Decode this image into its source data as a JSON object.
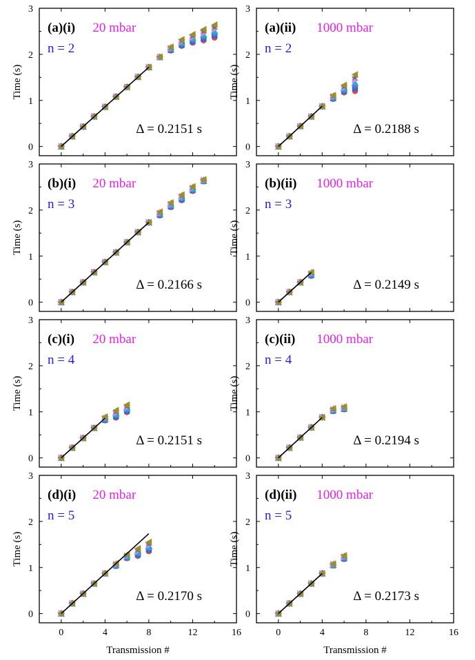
{
  "axes": {
    "xlabel": "Transmission #",
    "ylabel": "Time (s)",
    "xticks": [
      0,
      4,
      8,
      12,
      16
    ],
    "yticks": [
      0,
      1,
      2,
      3
    ],
    "xlim": [
      -2,
      16
    ],
    "ylim": [
      -0.2,
      3
    ]
  },
  "chart_data": [
    {
      "type": "scatter",
      "panel": "(a)(i)",
      "pressure": "20 mbar",
      "n": "n = 2",
      "delta": "Δ = 0.2151 s",
      "slope": 0.2151,
      "points": [
        [
          0,
          0
        ],
        [
          1,
          0.22
        ],
        [
          2,
          0.43
        ],
        [
          3,
          0.65
        ],
        [
          4,
          0.86
        ],
        [
          5,
          1.08
        ],
        [
          6,
          1.29
        ],
        [
          7,
          1.51
        ],
        [
          8,
          1.72
        ],
        [
          9,
          1.94
        ],
        [
          10,
          2.12
        ],
        [
          11,
          2.25
        ],
        [
          12,
          2.34
        ],
        [
          13,
          2.42
        ],
        [
          14,
          2.5
        ]
      ],
      "spread": [
        0,
        0,
        0,
        0,
        0,
        0,
        0,
        0,
        0,
        0,
        0.04,
        0.07,
        0.09,
        0.12,
        0.14
      ]
    },
    {
      "type": "scatter",
      "panel": "(a)(ii)",
      "pressure": "1000 mbar",
      "n": "n = 2",
      "delta": "Δ = 0.2188 s",
      "slope": 0.2188,
      "points": [
        [
          0,
          0
        ],
        [
          1,
          0.22
        ],
        [
          2,
          0.44
        ],
        [
          3,
          0.65
        ],
        [
          4,
          0.87
        ],
        [
          5,
          1.07
        ],
        [
          6,
          1.25
        ],
        [
          7,
          1.38
        ]
      ],
      "spread": [
        0,
        0,
        0,
        0,
        0,
        0.04,
        0.08,
        0.18
      ]
    },
    {
      "type": "scatter",
      "panel": "(b)(i)",
      "pressure": "20 mbar",
      "n": "n = 3",
      "delta": "Δ = 0.2166 s",
      "slope": 0.2166,
      "points": [
        [
          0,
          0
        ],
        [
          1,
          0.22
        ],
        [
          2,
          0.43
        ],
        [
          3,
          0.65
        ],
        [
          4,
          0.87
        ],
        [
          5,
          1.08
        ],
        [
          6,
          1.3
        ],
        [
          7,
          1.52
        ],
        [
          8,
          1.73
        ],
        [
          9,
          1.92
        ],
        [
          10,
          2.11
        ],
        [
          11,
          2.27
        ],
        [
          12,
          2.46
        ],
        [
          13,
          2.64
        ]
      ],
      "spread": [
        0,
        0,
        0,
        0,
        0,
        0,
        0,
        0,
        0,
        0.04,
        0.05,
        0.06,
        0.05,
        0.02
      ]
    },
    {
      "type": "scatter",
      "panel": "(b)(ii)",
      "pressure": "1000 mbar",
      "n": "n = 3",
      "delta": "Δ = 0.2149 s",
      "slope": 0.2149,
      "points": [
        [
          0,
          0
        ],
        [
          1,
          0.22
        ],
        [
          2,
          0.43
        ],
        [
          3,
          0.61
        ]
      ],
      "spread": [
        0,
        0,
        0,
        0.04
      ]
    },
    {
      "type": "scatter",
      "panel": "(c)(i)",
      "pressure": "20 mbar",
      "n": "n = 4",
      "delta": "Δ = 0.2151 s",
      "slope": 0.2151,
      "points": [
        [
          0,
          0
        ],
        [
          1,
          0.22
        ],
        [
          2,
          0.43
        ],
        [
          3,
          0.65
        ],
        [
          4,
          0.85
        ],
        [
          5,
          0.95
        ],
        [
          6,
          1.07
        ]
      ],
      "spread": [
        0,
        0,
        0,
        0,
        0.04,
        0.08,
        0.08
      ]
    },
    {
      "type": "scatter",
      "panel": "(c)(ii)",
      "pressure": "1000 mbar",
      "n": "n = 4",
      "delta": "Δ = 0.2194 s",
      "slope": 0.2194,
      "points": [
        [
          0,
          0
        ],
        [
          1,
          0.22
        ],
        [
          2,
          0.44
        ],
        [
          3,
          0.66
        ],
        [
          4,
          0.88
        ],
        [
          5,
          1.04
        ],
        [
          6,
          1.08
        ]
      ],
      "spread": [
        0,
        0,
        0,
        0,
        0,
        0.03,
        0.03
      ]
    },
    {
      "type": "scatter",
      "panel": "(d)(i)",
      "pressure": "20 mbar",
      "n": "n = 5",
      "delta": "Δ = 0.2170 s",
      "slope": 0.217,
      "points": [
        [
          0,
          0
        ],
        [
          1,
          0.22
        ],
        [
          2,
          0.43
        ],
        [
          3,
          0.65
        ],
        [
          4,
          0.87
        ],
        [
          5,
          1.06
        ],
        [
          6,
          1.24
        ],
        [
          7,
          1.33
        ],
        [
          8,
          1.45
        ]
      ],
      "spread": [
        0,
        0,
        0,
        0,
        0,
        0.03,
        0.04,
        0.08,
        0.1
      ]
    },
    {
      "type": "scatter",
      "panel": "(d)(ii)",
      "pressure": "1000 mbar",
      "n": "n = 5",
      "delta": "Δ = 0.2173 s",
      "slope": 0.2173,
      "points": [
        [
          0,
          0
        ],
        [
          1,
          0.22
        ],
        [
          2,
          0.43
        ],
        [
          3,
          0.65
        ],
        [
          4,
          0.87
        ],
        [
          5,
          1.06
        ],
        [
          6,
          1.22
        ]
      ],
      "spread": [
        0,
        0,
        0,
        0,
        0,
        0.02,
        0.04
      ]
    }
  ],
  "marker_colors": [
    "#e8463f",
    "#2c6bd1",
    "#8a5ad0",
    "#1fb3c9",
    "#c98df0",
    "#6a6a6a",
    "#9b8f2c",
    "#d67b2a",
    "#8a3b6b",
    "#b79a2a"
  ]
}
